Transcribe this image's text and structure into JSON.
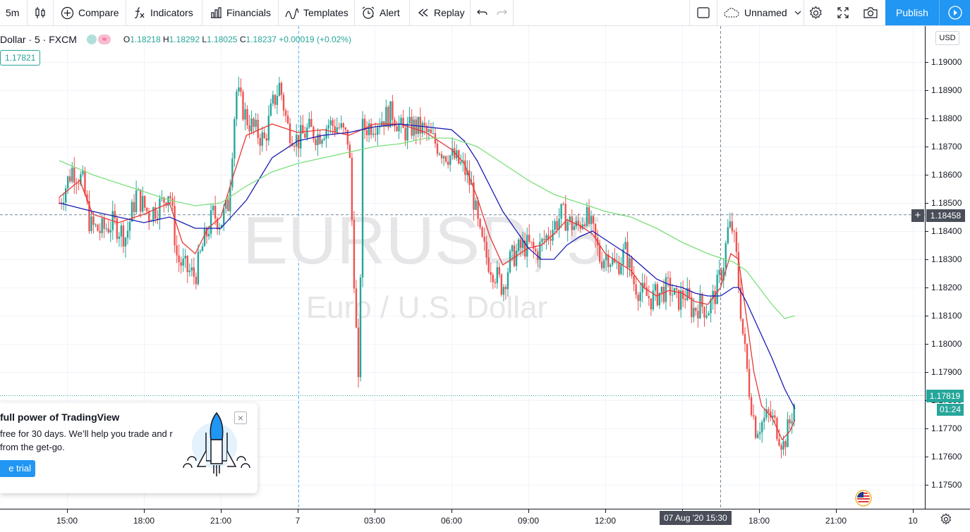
{
  "toolbar": {
    "interval": "5m",
    "compare": "Compare",
    "indicators": "Indicators",
    "financials": "Financials",
    "templates": "Templates",
    "alert": "Alert",
    "replay": "Replay",
    "layout_name": "Unnamed",
    "publish": "Publish"
  },
  "legend": {
    "symbol": "Dollar · 5 · FXCM",
    "open_key": "O",
    "open": "1.18218",
    "high_key": "H",
    "high": "1.18292",
    "low_key": "L",
    "low": "1.18025",
    "close_key": "C",
    "close": "1.18237",
    "change": "+0.00019 (+0.02%)",
    "ma_value": "1.17821"
  },
  "watermark": {
    "symbol": "EURUSD, 5",
    "description": "Euro / U.S. Dollar"
  },
  "price_axis": {
    "currency": "USD",
    "current_price": "1.17819",
    "countdown": "01:24",
    "crosshair_price": "1.18458"
  },
  "time_axis": {
    "crosshair_time": "07 Aug '20   15:30"
  },
  "promo": {
    "title": "full power of TradingView",
    "text": "free for 30 days. We’ll help you trade and r from the get-go.",
    "button": "e trial",
    "close": "×"
  },
  "colors": {
    "up": "#26a69a",
    "down": "#ef5350",
    "ma_fast": "#e53935",
    "ma_mid": "#1a1ab5",
    "ma_slow": "#7be07b",
    "accent": "#2196f3"
  },
  "icons": [
    "candles-icon",
    "compare-plus-icon",
    "fx-icon",
    "financials-icon",
    "templates-icon",
    "alarm-clock-icon",
    "replay-icon",
    "undo-icon",
    "redo-icon",
    "square-icon",
    "cloud-icon",
    "chevron-down-icon",
    "gear-icon",
    "fullscreen-icon",
    "camera-icon",
    "play-icon",
    "plus-icon",
    "flag-icon"
  ],
  "chart_data": {
    "type": "candlestick",
    "symbol": "EURUSD",
    "interval": "5",
    "ylim": [
      1.1744,
      1.1911
    ],
    "y_ticks": [
      "1.19000",
      "1.18900",
      "1.18800",
      "1.18700",
      "1.18600",
      "1.18500",
      "1.18400",
      "1.18300",
      "1.18200",
      "1.18100",
      "1.18000",
      "1.17900",
      "1.17800",
      "1.17700",
      "1.17600",
      "1.17500"
    ],
    "x_ticks": [
      "15:00",
      "18:00",
      "21:00",
      "7",
      "03:00",
      "06:00",
      "09:00",
      "12:00",
      "15:00",
      "18:00",
      "21:00",
      "10"
    ],
    "x_range": [
      "12:00",
      "21:00 (Aug 7)"
    ],
    "hours_per_tick": 3,
    "close_path": [
      [
        -0.3,
        1.185
      ],
      [
        0.2,
        1.1862
      ],
      [
        0.6,
        1.1858
      ],
      [
        0.9,
        1.1842
      ],
      [
        1.3,
        1.184
      ],
      [
        1.8,
        1.1843
      ],
      [
        2.3,
        1.1838
      ],
      [
        2.7,
        1.1853
      ],
      [
        3.2,
        1.1846
      ],
      [
        3.7,
        1.185
      ],
      [
        4.0,
        1.1855
      ],
      [
        4.3,
        1.183
      ],
      [
        4.7,
        1.1826
      ],
      [
        5.0,
        1.1824
      ],
      [
        5.3,
        1.1835
      ],
      [
        5.7,
        1.1846
      ],
      [
        6.0,
        1.1843
      ],
      [
        6.3,
        1.185
      ],
      [
        6.6,
        1.189
      ],
      [
        7.0,
        1.188
      ],
      [
        7.3,
        1.1876
      ],
      [
        7.7,
        1.1872
      ],
      [
        8.0,
        1.1884
      ],
      [
        8.3,
        1.1892
      ],
      [
        8.6,
        1.1877
      ],
      [
        9.0,
        1.1872
      ],
      [
        9.4,
        1.1876
      ],
      [
        9.8,
        1.1874
      ],
      [
        10.2,
        1.1878
      ],
      [
        10.6,
        1.1877
      ],
      [
        11.0,
        1.1872
      ],
      [
        11.4,
        1.1776
      ],
      [
        11.5,
        1.1876
      ],
      [
        11.9,
        1.1878
      ],
      [
        12.3,
        1.188
      ],
      [
        12.7,
        1.1882
      ],
      [
        13.1,
        1.1875
      ],
      [
        13.5,
        1.1877
      ],
      [
        13.9,
        1.1876
      ],
      [
        14.3,
        1.1872
      ],
      [
        14.7,
        1.1868
      ],
      [
        15.1,
        1.1866
      ],
      [
        15.5,
        1.1862
      ],
      [
        15.8,
        1.1855
      ],
      [
        16.1,
        1.1838
      ],
      [
        16.4,
        1.183
      ],
      [
        16.7,
        1.1825
      ],
      [
        17.0,
        1.182
      ],
      [
        17.3,
        1.183
      ],
      [
        17.7,
        1.1834
      ],
      [
        18.0,
        1.1835
      ],
      [
        18.3,
        1.1832
      ],
      [
        18.7,
        1.1838
      ],
      [
        19.0,
        1.1842
      ],
      [
        19.3,
        1.1846
      ],
      [
        19.6,
        1.1843
      ],
      [
        19.9,
        1.1841
      ],
      [
        20.2,
        1.1846
      ],
      [
        20.5,
        1.184
      ],
      [
        20.8,
        1.183
      ],
      [
        21.1,
        1.1832
      ],
      [
        21.4,
        1.1827
      ],
      [
        21.8,
        1.1833
      ],
      [
        22.1,
        1.1822
      ],
      [
        22.4,
        1.1818
      ],
      [
        22.8,
        1.1816
      ],
      [
        23.1,
        1.1818
      ],
      [
        23.5,
        1.182
      ],
      [
        23.8,
        1.1815
      ],
      [
        24.1,
        1.1818
      ],
      [
        24.4,
        1.1812
      ],
      [
        24.7,
        1.1814
      ],
      [
        25.0,
        1.1812
      ],
      [
        25.3,
        1.1818
      ],
      [
        25.6,
        1.1828
      ],
      [
        25.8,
        1.1841
      ],
      [
        25.95,
        1.1841
      ],
      [
        26.1,
        1.1832
      ],
      [
        26.35,
        1.1805
      ],
      [
        26.6,
        1.1785
      ],
      [
        26.85,
        1.177
      ],
      [
        27.1,
        1.1772
      ],
      [
        27.4,
        1.1775
      ],
      [
        27.7,
        1.177
      ],
      [
        27.95,
        1.1764
      ],
      [
        28.2,
        1.1772
      ],
      [
        28.4,
        1.178
      ]
    ],
    "series": [
      {
        "name": "",
        "color": "#e53935",
        "values": [
          [
            -0.3,
            1.1852
          ],
          [
            0.5,
            1.1858
          ],
          [
            1.0,
            1.1846
          ],
          [
            2.0,
            1.1843
          ],
          [
            3.0,
            1.1846
          ],
          [
            4.0,
            1.185
          ],
          [
            4.5,
            1.1836
          ],
          [
            5.0,
            1.1832
          ],
          [
            5.5,
            1.1841
          ],
          [
            6.0,
            1.1845
          ],
          [
            6.5,
            1.186
          ],
          [
            7.0,
            1.1874
          ],
          [
            8.0,
            1.1878
          ],
          [
            9.0,
            1.1875
          ],
          [
            10.0,
            1.1876
          ],
          [
            11.0,
            1.1874
          ],
          [
            12.0,
            1.1878
          ],
          [
            13.0,
            1.1878
          ],
          [
            14.0,
            1.1875
          ],
          [
            15.0,
            1.1869
          ],
          [
            15.5,
            1.1864
          ],
          [
            16.0,
            1.1852
          ],
          [
            16.5,
            1.1838
          ],
          [
            17.0,
            1.1828
          ],
          [
            17.5,
            1.1831
          ],
          [
            18.0,
            1.1834
          ],
          [
            18.5,
            1.1835
          ],
          [
            19.0,
            1.1839
          ],
          [
            19.5,
            1.1844
          ],
          [
            20.0,
            1.1842
          ],
          [
            20.5,
            1.1839
          ],
          [
            21.0,
            1.1832
          ],
          [
            21.5,
            1.1829
          ],
          [
            22.0,
            1.1826
          ],
          [
            22.5,
            1.182
          ],
          [
            23.0,
            1.1817
          ],
          [
            23.5,
            1.1819
          ],
          [
            24.0,
            1.1818
          ],
          [
            24.5,
            1.1815
          ],
          [
            25.0,
            1.1814
          ],
          [
            25.5,
            1.182
          ],
          [
            25.9,
            1.1832
          ],
          [
            26.2,
            1.183
          ],
          [
            26.5,
            1.181
          ],
          [
            26.8,
            1.179
          ],
          [
            27.1,
            1.1778
          ],
          [
            27.5,
            1.1774
          ],
          [
            27.9,
            1.1766
          ],
          [
            28.2,
            1.1769
          ],
          [
            28.4,
            1.1773
          ]
        ]
      },
      {
        "name": "",
        "color": "#1a1ab5",
        "values": [
          [
            -0.3,
            1.185
          ],
          [
            1.0,
            1.1847
          ],
          [
            2.0,
            1.1845
          ],
          [
            3.0,
            1.1843
          ],
          [
            4.0,
            1.1845
          ],
          [
            5.0,
            1.1841
          ],
          [
            6.0,
            1.1841
          ],
          [
            7.0,
            1.1851
          ],
          [
            8.0,
            1.1866
          ],
          [
            9.0,
            1.1872
          ],
          [
            10.0,
            1.1874
          ],
          [
            11.0,
            1.1875
          ],
          [
            12.0,
            1.1877
          ],
          [
            13.0,
            1.1878
          ],
          [
            14.0,
            1.1877
          ],
          [
            15.0,
            1.1876
          ],
          [
            15.5,
            1.1872
          ],
          [
            16.0,
            1.1865
          ],
          [
            17.0,
            1.1847
          ],
          [
            18.0,
            1.1834
          ],
          [
            18.5,
            1.183
          ],
          [
            19.0,
            1.183
          ],
          [
            19.5,
            1.1835
          ],
          [
            20.0,
            1.1838
          ],
          [
            20.5,
            1.184
          ],
          [
            21.0,
            1.1837
          ],
          [
            21.5,
            1.1834
          ],
          [
            22.0,
            1.1831
          ],
          [
            22.5,
            1.1827
          ],
          [
            23.0,
            1.1823
          ],
          [
            23.5,
            1.1821
          ],
          [
            24.0,
            1.182
          ],
          [
            24.5,
            1.1818
          ],
          [
            25.0,
            1.1817
          ],
          [
            25.5,
            1.1817
          ],
          [
            26.0,
            1.182
          ],
          [
            26.2,
            1.182
          ],
          [
            26.5,
            1.1815
          ],
          [
            27.0,
            1.1805
          ],
          [
            27.5,
            1.1795
          ],
          [
            28.0,
            1.1784
          ],
          [
            28.4,
            1.1777
          ]
        ]
      },
      {
        "name": "",
        "color": "#7be07b",
        "values": [
          [
            -0.3,
            1.1865
          ],
          [
            1.0,
            1.186
          ],
          [
            2.0,
            1.1857
          ],
          [
            3.0,
            1.1854
          ],
          [
            4.0,
            1.1851
          ],
          [
            5.0,
            1.1849
          ],
          [
            6.0,
            1.185
          ],
          [
            7.0,
            1.1856
          ],
          [
            8.0,
            1.1861
          ],
          [
            9.0,
            1.1864
          ],
          [
            10.0,
            1.1866
          ],
          [
            11.0,
            1.1868
          ],
          [
            12.0,
            1.187
          ],
          [
            13.0,
            1.1871
          ],
          [
            14.0,
            1.1873
          ],
          [
            15.0,
            1.1873
          ],
          [
            16.0,
            1.187
          ],
          [
            17.0,
            1.1864
          ],
          [
            18.0,
            1.1858
          ],
          [
            19.0,
            1.1853
          ],
          [
            20.0,
            1.185
          ],
          [
            21.0,
            1.1847
          ],
          [
            22.0,
            1.1845
          ],
          [
            23.0,
            1.1841
          ],
          [
            24.0,
            1.1836
          ],
          [
            25.0,
            1.1832
          ],
          [
            26.0,
            1.1829
          ],
          [
            26.5,
            1.1826
          ],
          [
            27.0,
            1.182
          ],
          [
            27.5,
            1.1814
          ],
          [
            28.0,
            1.1809
          ],
          [
            28.4,
            1.181
          ]
        ]
      }
    ],
    "crosshair": {
      "x": "15:30",
      "y": 1.18458
    }
  }
}
